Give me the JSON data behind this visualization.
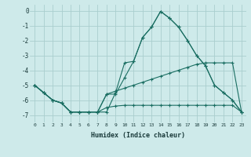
{
  "xlabel": "Humidex (Indice chaleur)",
  "background_color": "#ceeaea",
  "grid_color": "#aacece",
  "line_color": "#1a6e62",
  "x_ticks": [
    0,
    1,
    2,
    3,
    4,
    5,
    6,
    7,
    8,
    9,
    10,
    11,
    12,
    13,
    14,
    15,
    16,
    17,
    18,
    19,
    20,
    21,
    22,
    23
  ],
  "y_ticks": [
    0,
    -1,
    -2,
    -3,
    -4,
    -5,
    -6,
    -7
  ],
  "ylim": [
    -7.5,
    0.4
  ],
  "xlim": [
    -0.5,
    23.5
  ],
  "line1_x": [
    0,
    1,
    2,
    3,
    4,
    5,
    6,
    7,
    8,
    9,
    10,
    11,
    12,
    13,
    14,
    15,
    16,
    17,
    18,
    19,
    20,
    21,
    22,
    23
  ],
  "line1_y": [
    -5.0,
    -5.5,
    -6.0,
    -6.2,
    -6.8,
    -6.8,
    -6.8,
    -6.8,
    -6.8,
    -5.5,
    -3.5,
    -3.4,
    -1.8,
    -1.1,
    -0.05,
    -0.5,
    -1.1,
    -2.0,
    -3.0,
    -3.7,
    -5.0,
    -5.5,
    -6.0,
    -6.8
  ],
  "line2_x": [
    0,
    1,
    2,
    3,
    4,
    5,
    6,
    7,
    8,
    9,
    10,
    11,
    12,
    13,
    14,
    15,
    16,
    17,
    18,
    19,
    20,
    21,
    22,
    23
  ],
  "line2_y": [
    -5.0,
    -5.5,
    -6.0,
    -6.2,
    -6.8,
    -6.8,
    -6.8,
    -6.8,
    -6.5,
    -6.4,
    -6.35,
    -6.35,
    -6.35,
    -6.35,
    -6.35,
    -6.35,
    -6.35,
    -6.35,
    -6.35,
    -6.35,
    -6.35,
    -6.35,
    -6.35,
    -6.8
  ],
  "line3_x": [
    0,
    1,
    2,
    3,
    4,
    5,
    6,
    7,
    8,
    9,
    10,
    11,
    12,
    13,
    14,
    15,
    16,
    17,
    18,
    19,
    20,
    21,
    22,
    23
  ],
  "line3_y": [
    -5.0,
    -5.5,
    -6.0,
    -6.2,
    -6.8,
    -6.8,
    -6.8,
    -6.8,
    -5.6,
    -5.4,
    -5.2,
    -5.0,
    -4.8,
    -4.6,
    -4.4,
    -4.2,
    -4.0,
    -3.8,
    -3.6,
    -3.5,
    -3.5,
    -3.5,
    -3.5,
    -6.8
  ],
  "line4_x": [
    0,
    1,
    2,
    3,
    4,
    5,
    6,
    7,
    8,
    9,
    10,
    11,
    12,
    13,
    14,
    15,
    16,
    17,
    18,
    19,
    20,
    21,
    22,
    23
  ],
  "line4_y": [
    -5.0,
    -5.5,
    -6.0,
    -6.2,
    -6.8,
    -6.8,
    -6.8,
    -6.8,
    -5.6,
    -5.6,
    -4.5,
    -3.4,
    -1.8,
    -1.1,
    -0.05,
    -0.5,
    -1.1,
    -2.0,
    -3.0,
    -3.7,
    -5.0,
    -5.5,
    -6.0,
    -6.8
  ]
}
